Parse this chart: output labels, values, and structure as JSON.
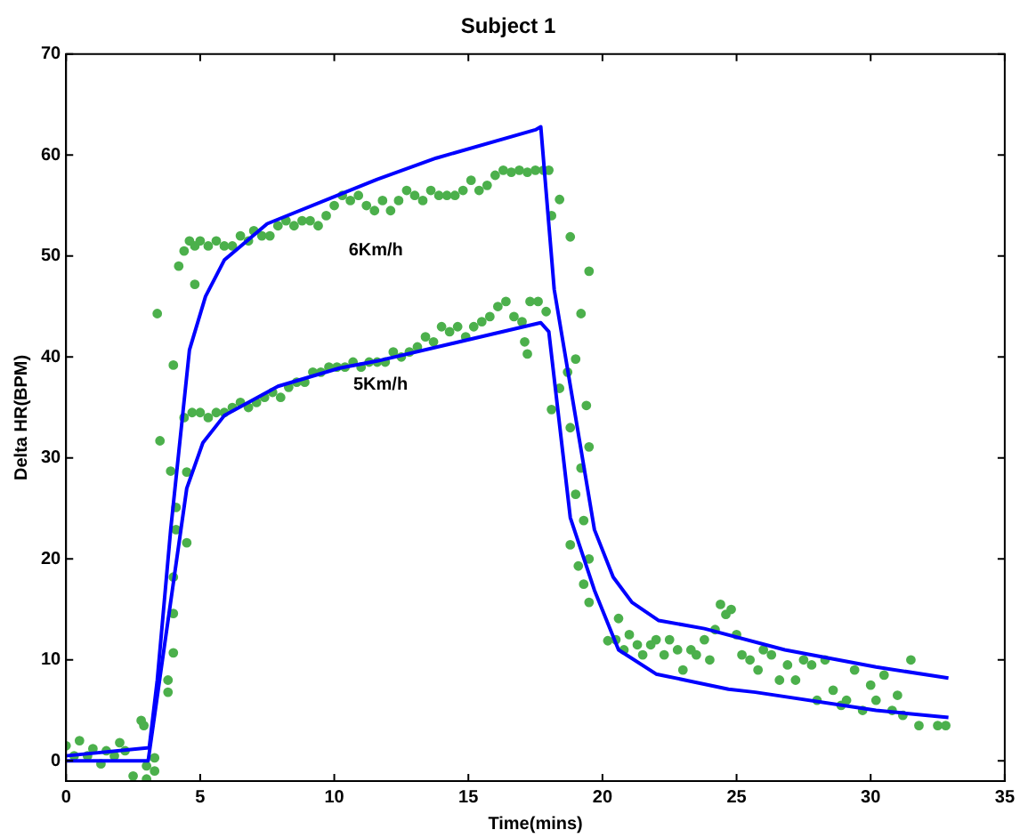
{
  "chart_data": {
    "type": "line",
    "title": "Subject 1",
    "xlabel": "Time(mins)",
    "ylabel": "Delta HR(BPM)",
    "xlim": [
      0,
      35
    ],
    "ylim": [
      -2,
      70
    ],
    "xticks": [
      0,
      5,
      10,
      15,
      20,
      25,
      30,
      35
    ],
    "yticks": [
      0,
      10,
      20,
      30,
      40,
      50,
      60,
      70
    ],
    "grid": false,
    "legend": false,
    "line_style": "solid",
    "series": [
      {
        "type": "scatter",
        "color": "#4cb04c",
        "marker": "circle",
        "x": [
          0,
          0.3,
          0.5,
          0.8,
          1,
          1.3,
          1.5,
          1.8,
          2,
          2.2,
          2.5,
          2.8,
          2.9,
          3,
          3,
          3.3,
          3.3,
          3.4,
          3.5,
          4,
          4.2,
          4.8,
          3.9,
          4.5,
          4.1,
          4.1,
          4.5,
          4,
          4,
          4,
          3.8,
          3.8,
          4.4,
          4.6,
          4.8,
          5,
          5.3,
          5.6,
          5.9,
          6.2,
          6.5,
          6.8,
          7,
          7.3,
          7.6,
          7.9,
          8.2,
          8.5,
          8.8,
          9.1,
          9.4,
          9.7,
          10,
          10.3,
          10.6,
          10.9,
          11.2,
          11.5,
          11.8,
          12.1,
          12.4,
          12.7,
          13,
          13.3,
          13.6,
          13.9,
          14.2,
          14.5,
          14.8,
          15.1,
          15.4,
          15.7,
          16,
          16.3,
          16.6,
          16.9,
          17.2,
          17.5,
          17.8,
          18,
          4.4,
          4.7,
          5,
          5.3,
          5.6,
          5.9,
          6.2,
          6.5,
          6.8,
          7.1,
          7.4,
          7.7,
          8,
          8.3,
          8.6,
          8.9,
          9.2,
          9.5,
          9.8,
          10.1,
          10.4,
          10.7,
          11,
          11.3,
          11.6,
          11.9,
          12.2,
          12.5,
          12.8,
          13.1,
          13.4,
          13.7,
          14,
          14.3,
          14.6,
          14.9,
          15.2,
          15.5,
          15.8,
          16.1,
          16.4,
          16.7,
          17,
          17.3,
          17.6,
          17.9,
          17.2,
          17.1,
          18.1,
          18.4,
          18.8,
          19.5,
          19.2,
          19,
          18.7,
          18.4,
          18.1,
          19.4,
          18.8,
          19.5,
          19.2,
          19,
          19.3,
          18.8,
          19.1,
          19.5,
          19.3,
          19.5,
          20.6,
          20.2,
          20.5,
          20.8,
          21,
          21.3,
          21.5,
          21.8,
          22,
          22.3,
          22.5,
          22.8,
          23,
          23.3,
          23.5,
          23.8,
          24,
          24.2,
          24.4,
          24.6,
          24.8,
          25,
          25.2,
          25.5,
          25.8,
          26,
          26.3,
          26.6,
          26.9,
          27.2,
          27.5,
          27.8,
          28,
          28.3,
          28.6,
          28.9,
          29.1,
          29.4,
          29.7,
          30,
          30.2,
          30.5,
          30.8,
          31,
          31.2,
          31.5,
          31.8,
          32.5,
          32.8
        ],
        "values": [
          1.5,
          0.5,
          2,
          0.5,
          1.2,
          -0.3,
          1,
          0.5,
          1.8,
          1,
          -1.5,
          4,
          3.5,
          -1.8,
          -0.5,
          -1,
          0.3,
          44.3,
          31.7,
          39.2,
          49,
          47.2,
          28.7,
          28.6,
          25.1,
          22.9,
          21.6,
          18.2,
          14.6,
          10.7,
          6.8,
          8,
          50.5,
          51.5,
          51,
          51.5,
          51,
          51.5,
          51,
          51,
          52,
          51.5,
          52.5,
          52,
          52,
          53,
          53.5,
          53,
          53.5,
          53.5,
          53,
          54,
          55,
          56,
          55.5,
          56,
          55,
          54.5,
          55.5,
          54.5,
          55.5,
          56.5,
          56,
          55.5,
          56.5,
          56,
          56,
          56,
          56.5,
          57.5,
          56.5,
          57,
          58,
          58.5,
          58.3,
          58.5,
          58.3,
          58.5,
          58.5,
          58.5,
          34,
          34.5,
          34.5,
          34,
          34.5,
          34.5,
          35,
          35.5,
          35,
          35.5,
          36,
          36.5,
          36,
          37,
          37.5,
          37.5,
          38.5,
          38.5,
          39,
          39,
          39,
          39.5,
          39,
          39.5,
          39.5,
          39.5,
          40.5,
          40,
          40.5,
          41,
          42,
          41.5,
          43,
          42.5,
          43,
          42,
          43,
          43.5,
          44,
          45,
          45.5,
          44,
          43.5,
          45.5,
          45.5,
          44.5,
          40.3,
          41.5,
          54,
          55.6,
          51.9,
          48.5,
          44.3,
          39.8,
          38.5,
          36.9,
          34.8,
          35.2,
          33,
          31.1,
          29,
          26.4,
          23.8,
          21.4,
          19.3,
          20,
          17.5,
          15.7,
          14.1,
          11.9,
          12,
          11,
          12.5,
          11.5,
          10.5,
          11.5,
          12,
          10.5,
          12,
          11,
          9,
          11,
          10.5,
          12,
          10,
          13,
          15.5,
          14.5,
          15,
          12.5,
          10.5,
          10,
          9,
          11,
          10.5,
          8,
          9.5,
          8,
          10,
          9.5,
          6,
          10,
          7,
          5.5,
          6,
          9,
          5,
          7.5,
          6,
          8.5,
          5,
          6.5,
          4.5,
          10,
          3.5,
          3.5,
          3.5
        ]
      },
      {
        "color": "#0000ff",
        "marker": "none",
        "x": [
          0,
          3.1,
          3.4,
          3.9,
          4.6,
          5.2,
          5.9,
          7.5,
          10.2,
          11.6,
          13.8,
          17.5,
          17.7,
          18.2,
          19.7,
          20.4,
          21.1,
          22.1,
          23.8,
          26.8,
          30.2,
          32.9
        ],
        "values": [
          0.5,
          1.3,
          8,
          22.9,
          40.7,
          46,
          49.6,
          53.2,
          56.1,
          57.6,
          59.7,
          62.5,
          62.8,
          46.7,
          22.9,
          18.2,
          15.7,
          13.9,
          13.1,
          11,
          9.3,
          8.2
        ]
      },
      {
        "color": "#0000ff",
        "marker": "none",
        "x": [
          0,
          3.06,
          4.5,
          5.1,
          5.9,
          7.9,
          10.2,
          11.6,
          17.7,
          18,
          18.8,
          19.7,
          20.6,
          22,
          24.7,
          25.7,
          30.2,
          32.9
        ],
        "values": [
          0,
          0,
          27,
          31.5,
          34.2,
          37.1,
          38.9,
          39.6,
          43.4,
          42.5,
          24.1,
          16.9,
          11,
          8.6,
          7.1,
          6.8,
          5,
          4.3
        ]
      }
    ],
    "annotations": [
      "6Km/h",
      "5Km/h"
    ]
  }
}
